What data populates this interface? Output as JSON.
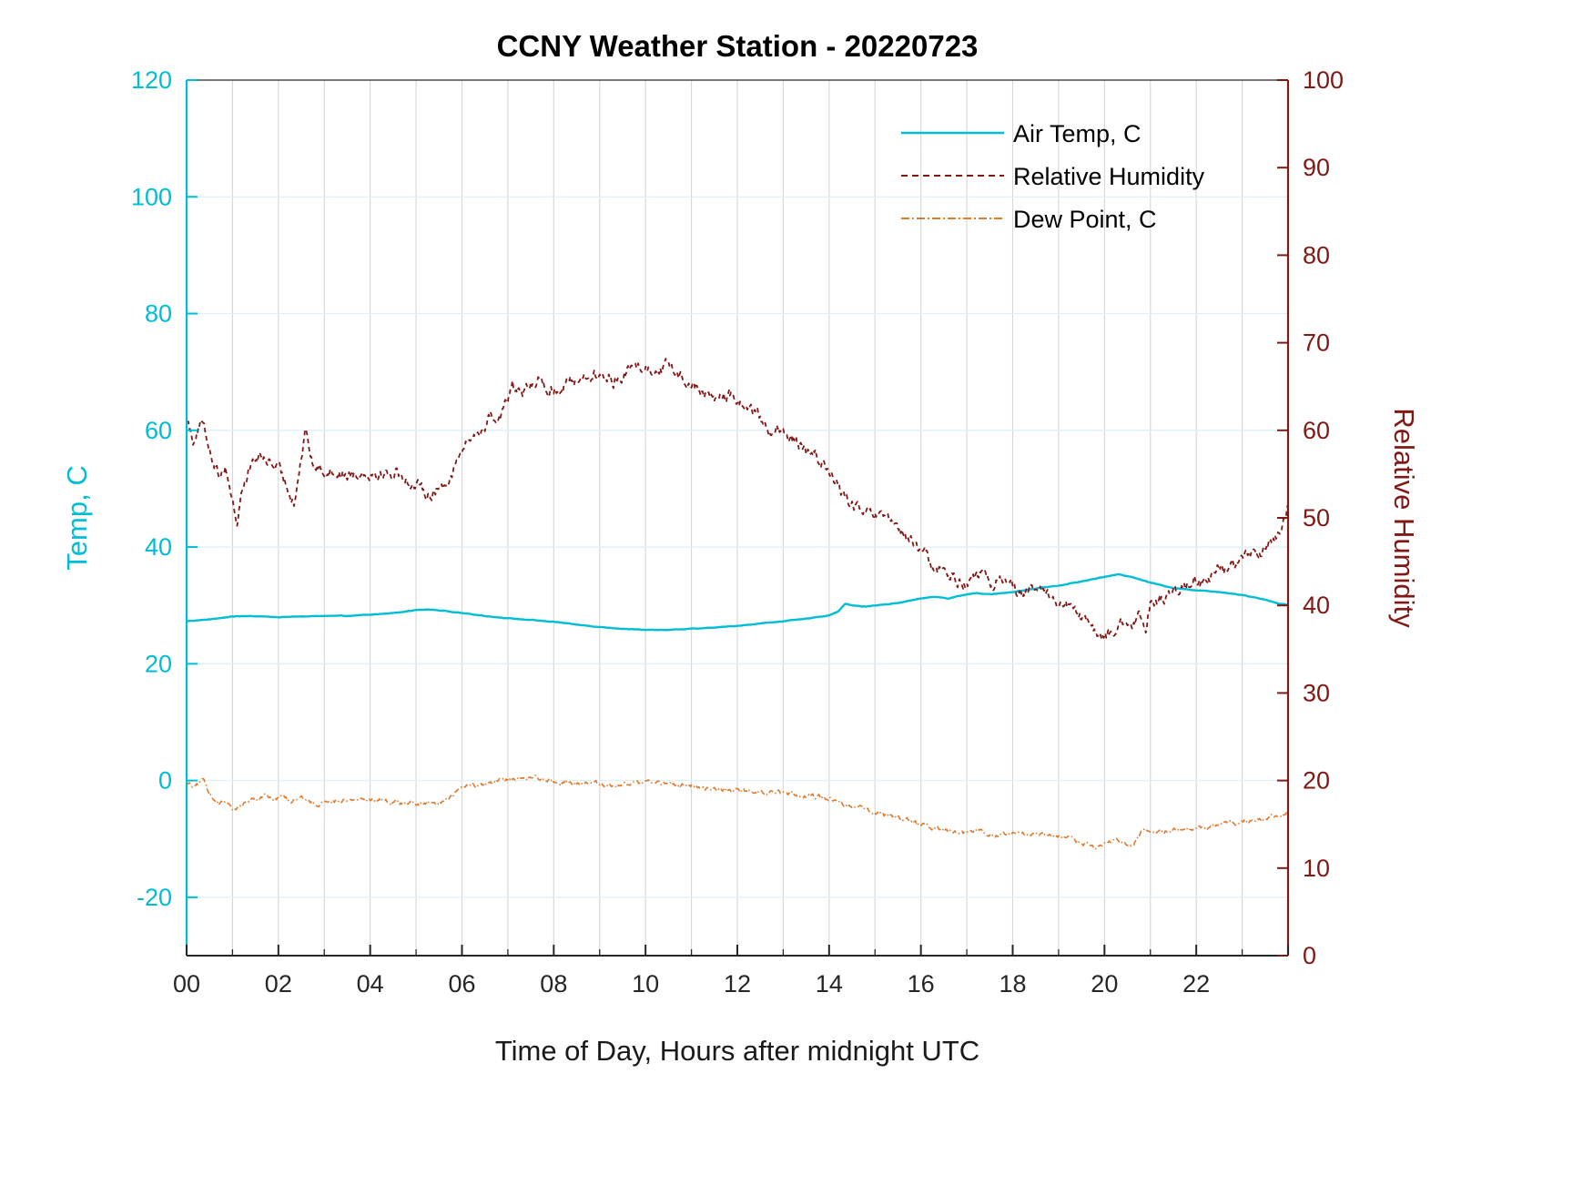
{
  "chart_data": {
    "type": "line",
    "title": "CCNY Weather Station - 20220723",
    "xlabel": "Time of Day, Hours after midnight UTC",
    "ylabel_left": "Temp, C",
    "ylabel_right": "Relative Humidity",
    "xlim": [
      0,
      24
    ],
    "xticks": [
      0,
      2,
      4,
      6,
      8,
      10,
      12,
      14,
      16,
      18,
      20,
      22
    ],
    "xtick_labels": [
      "00",
      "02",
      "04",
      "06",
      "08",
      "10",
      "12",
      "14",
      "16",
      "18",
      "20",
      "22"
    ],
    "x_minor_grid_step": 1,
    "ylim_left": [
      -30,
      120
    ],
    "yticks_left": [
      -20,
      0,
      20,
      40,
      60,
      80,
      100,
      120
    ],
    "ylim_right": [
      0,
      100
    ],
    "yticks_right": [
      0,
      10,
      20,
      30,
      40,
      50,
      60,
      70,
      80,
      90,
      100
    ],
    "grid": true,
    "legend": [
      "Air Temp, C",
      "Relative Humidity",
      "Dew Point, C"
    ],
    "legend_position": "top-right-inside",
    "colors": {
      "temp": "#00bdd6",
      "rh": "#801815",
      "dew": "#df7a2e",
      "grid_h": "#ddf1f6",
      "grid_v": "#d6d6d6",
      "axis_x": "#262626"
    },
    "series": [
      {
        "key": "air-temp",
        "name": "Air Temp, C",
        "axis": "left",
        "color_key": "temp",
        "width": 2.4,
        "dash": "",
        "noise": 0.06,
        "points": [
          [
            0,
            27.3
          ],
          [
            0.5,
            27.6
          ],
          [
            1,
            28.1
          ],
          [
            1.3,
            28.2
          ],
          [
            2,
            28.0
          ],
          [
            2.5,
            28.1
          ],
          [
            3,
            28.2
          ],
          [
            3.5,
            28.2
          ],
          [
            4,
            28.4
          ],
          [
            4.5,
            28.7
          ],
          [
            5,
            29.2
          ],
          [
            5.3,
            29.3
          ],
          [
            5.7,
            29.0
          ],
          [
            6,
            28.7
          ],
          [
            6.5,
            28.2
          ],
          [
            7,
            27.8
          ],
          [
            7.5,
            27.5
          ],
          [
            8,
            27.2
          ],
          [
            8.5,
            26.7
          ],
          [
            9,
            26.3
          ],
          [
            9.5,
            26.0
          ],
          [
            10,
            25.8
          ],
          [
            10.5,
            25.8
          ],
          [
            11,
            26.0
          ],
          [
            11.5,
            26.2
          ],
          [
            12,
            26.5
          ],
          [
            12.5,
            26.9
          ],
          [
            13,
            27.3
          ],
          [
            13.5,
            27.7
          ],
          [
            14,
            28.3
          ],
          [
            14.2,
            29.0
          ],
          [
            14.35,
            30.3
          ],
          [
            14.5,
            30.0
          ],
          [
            14.8,
            29.8
          ],
          [
            15,
            30.0
          ],
          [
            15.5,
            30.4
          ],
          [
            16,
            31.2
          ],
          [
            16.3,
            31.5
          ],
          [
            16.6,
            31.2
          ],
          [
            17,
            31.9
          ],
          [
            17.2,
            32.1
          ],
          [
            17.5,
            31.9
          ],
          [
            18,
            32.3
          ],
          [
            18.5,
            32.9
          ],
          [
            19,
            33.4
          ],
          [
            19.5,
            34.1
          ],
          [
            20,
            34.9
          ],
          [
            20.3,
            35.3
          ],
          [
            20.6,
            34.9
          ],
          [
            21,
            33.9
          ],
          [
            21.5,
            33.0
          ],
          [
            22,
            32.6
          ],
          [
            22.5,
            32.3
          ],
          [
            23,
            31.8
          ],
          [
            23.5,
            31.0
          ],
          [
            23.8,
            30.3
          ],
          [
            24,
            30.1
          ]
        ]
      },
      {
        "key": "relative-humidity",
        "name": "Relative Humidity",
        "axis": "right",
        "color_key": "rh",
        "width": 1.8,
        "dash": "5 4",
        "noise": 1.0,
        "points": [
          [
            0,
            61.5
          ],
          [
            0.15,
            59
          ],
          [
            0.3,
            61
          ],
          [
            0.5,
            58
          ],
          [
            0.7,
            55
          ],
          [
            0.85,
            56
          ],
          [
            1.0,
            52
          ],
          [
            1.1,
            49.5
          ],
          [
            1.2,
            53
          ],
          [
            1.4,
            56
          ],
          [
            1.6,
            57
          ],
          [
            1.8,
            56.5
          ],
          [
            2.0,
            55.5
          ],
          [
            2.2,
            53.5
          ],
          [
            2.35,
            52
          ],
          [
            2.5,
            57
          ],
          [
            2.6,
            60
          ],
          [
            2.75,
            56
          ],
          [
            3.0,
            55.5
          ],
          [
            3.3,
            55.2
          ],
          [
            3.6,
            55
          ],
          [
            4.0,
            55.3
          ],
          [
            4.3,
            55
          ],
          [
            4.6,
            55.2
          ],
          [
            4.9,
            54
          ],
          [
            5.1,
            53.2
          ],
          [
            5.3,
            52.8
          ],
          [
            5.6,
            53.6
          ],
          [
            5.9,
            56.5
          ],
          [
            6.1,
            58.5
          ],
          [
            6.3,
            59.5
          ],
          [
            6.5,
            60.5
          ],
          [
            6.6,
            62
          ],
          [
            6.75,
            61
          ],
          [
            6.9,
            62.5
          ],
          [
            7.0,
            63.5
          ],
          [
            7.1,
            65
          ],
          [
            7.3,
            64
          ],
          [
            7.5,
            65
          ],
          [
            7.7,
            66
          ],
          [
            7.9,
            64.5
          ],
          [
            8.1,
            64.8
          ],
          [
            8.3,
            65.5
          ],
          [
            8.6,
            66
          ],
          [
            8.9,
            66.3
          ],
          [
            9.1,
            66
          ],
          [
            9.3,
            65.6
          ],
          [
            9.5,
            66.5
          ],
          [
            9.7,
            67
          ],
          [
            9.9,
            67.5
          ],
          [
            10.1,
            67
          ],
          [
            10.3,
            67.2
          ],
          [
            10.5,
            67.5
          ],
          [
            10.7,
            66.5
          ],
          [
            10.9,
            65.8
          ],
          [
            11.1,
            64.8
          ],
          [
            11.3,
            64.2
          ],
          [
            11.5,
            63.6
          ],
          [
            11.7,
            64
          ],
          [
            11.9,
            63.8
          ],
          [
            12.1,
            63
          ],
          [
            12.3,
            62.5
          ],
          [
            12.5,
            61.2
          ],
          [
            12.7,
            60.2
          ],
          [
            12.9,
            60
          ],
          [
            13.1,
            58.8
          ],
          [
            13.3,
            58.6
          ],
          [
            13.5,
            57.4
          ],
          [
            13.7,
            57
          ],
          [
            13.9,
            56
          ],
          [
            14.05,
            55
          ],
          [
            14.2,
            53.5
          ],
          [
            14.4,
            52
          ],
          [
            14.6,
            51
          ],
          [
            14.8,
            50.4
          ],
          [
            15.0,
            50.2
          ],
          [
            15.2,
            49.8
          ],
          [
            15.4,
            49
          ],
          [
            15.6,
            48.2
          ],
          [
            15.8,
            47.4
          ],
          [
            16.0,
            46.2
          ],
          [
            16.2,
            45
          ],
          [
            16.35,
            43.8
          ],
          [
            16.5,
            44.2
          ],
          [
            16.7,
            43.2
          ],
          [
            16.9,
            42.6
          ],
          [
            17.1,
            42.9
          ],
          [
            17.3,
            43.4
          ],
          [
            17.5,
            42.4
          ],
          [
            17.7,
            42.8
          ],
          [
            17.9,
            43
          ],
          [
            18.1,
            41.8
          ],
          [
            18.3,
            41.4
          ],
          [
            18.5,
            41.8
          ],
          [
            18.7,
            41.2
          ],
          [
            18.9,
            40.8
          ],
          [
            19.1,
            40.2
          ],
          [
            19.3,
            39.4
          ],
          [
            19.5,
            38.6
          ],
          [
            19.7,
            37.4
          ],
          [
            19.9,
            36.4
          ],
          [
            20.0,
            36.0
          ],
          [
            20.15,
            37
          ],
          [
            20.3,
            37.6
          ],
          [
            20.45,
            38.2
          ],
          [
            20.6,
            37.2
          ],
          [
            20.75,
            38.4
          ],
          [
            20.9,
            37.2
          ],
          [
            21.0,
            40.3
          ],
          [
            21.2,
            40.8
          ],
          [
            21.4,
            41.2
          ],
          [
            21.6,
            41.6
          ],
          [
            21.8,
            42
          ],
          [
            21.95,
            43
          ],
          [
            22.1,
            42.4
          ],
          [
            22.3,
            43
          ],
          [
            22.45,
            44.6
          ],
          [
            22.6,
            44
          ],
          [
            22.8,
            44.8
          ],
          [
            23.0,
            45.4
          ],
          [
            23.2,
            45.8
          ],
          [
            23.4,
            46.2
          ],
          [
            23.6,
            46.8
          ],
          [
            23.8,
            48
          ],
          [
            23.95,
            50
          ],
          [
            24,
            51.2
          ]
        ]
      },
      {
        "key": "dew-point",
        "name": "Dew Point, C",
        "axis": "right",
        "color_key": "dew",
        "width": 1.6,
        "dash": "6 3 1.5 3",
        "noise": 0.38,
        "points": [
          [
            0,
            19.8
          ],
          [
            0.2,
            19.2
          ],
          [
            0.35,
            20
          ],
          [
            0.5,
            18.6
          ],
          [
            0.7,
            17.2
          ],
          [
            0.85,
            17.6
          ],
          [
            1.0,
            16.4
          ],
          [
            1.15,
            17
          ],
          [
            1.3,
            17.6
          ],
          [
            1.5,
            17.9
          ],
          [
            1.7,
            18.3
          ],
          [
            1.9,
            18
          ],
          [
            2.1,
            18.2
          ],
          [
            2.3,
            17.4
          ],
          [
            2.5,
            18.4
          ],
          [
            2.65,
            17.6
          ],
          [
            2.8,
            17.4
          ],
          [
            3.0,
            17.6
          ],
          [
            3.3,
            17.7
          ],
          [
            3.6,
            17.8
          ],
          [
            3.9,
            17.9
          ],
          [
            4.2,
            17.8
          ],
          [
            4.5,
            17.6
          ],
          [
            4.8,
            17.4
          ],
          [
            5.1,
            17.3
          ],
          [
            5.4,
            17.3
          ],
          [
            5.7,
            17.8
          ],
          [
            6.0,
            19.2
          ],
          [
            6.2,
            19.5
          ],
          [
            6.4,
            19.2
          ],
          [
            6.6,
            19.6
          ],
          [
            6.8,
            19.9
          ],
          [
            7.0,
            20.1
          ],
          [
            7.2,
            20.4
          ],
          [
            7.4,
            20.2
          ],
          [
            7.6,
            20.6
          ],
          [
            7.8,
            20.2
          ],
          [
            8.0,
            19.9
          ],
          [
            8.3,
            19.8
          ],
          [
            8.6,
            19.7
          ],
          [
            9.0,
            19.6
          ],
          [
            9.4,
            19.5
          ],
          [
            9.8,
            19.7
          ],
          [
            10.1,
            19.9
          ],
          [
            10.4,
            19.6
          ],
          [
            10.7,
            19.5
          ],
          [
            11.0,
            19.4
          ],
          [
            11.4,
            19.1
          ],
          [
            11.8,
            18.9
          ],
          [
            12.2,
            18.8
          ],
          [
            12.6,
            18.7
          ],
          [
            13.0,
            18.6
          ],
          [
            13.4,
            18.4
          ],
          [
            13.8,
            18.1
          ],
          [
            14.1,
            17.9
          ],
          [
            14.3,
            17.4
          ],
          [
            14.6,
            16.9
          ],
          [
            14.9,
            16.4
          ],
          [
            15.2,
            16.1
          ],
          [
            15.5,
            15.7
          ],
          [
            15.8,
            15.3
          ],
          [
            16.1,
            14.9
          ],
          [
            16.4,
            14.5
          ],
          [
            16.7,
            14.2
          ],
          [
            17.0,
            13.9
          ],
          [
            17.2,
            14.3
          ],
          [
            17.4,
            14.1
          ],
          [
            17.6,
            13.9
          ],
          [
            17.9,
            13.8
          ],
          [
            18.2,
            13.9
          ],
          [
            18.5,
            13.8
          ],
          [
            18.8,
            13.6
          ],
          [
            19.1,
            13.4
          ],
          [
            19.4,
            13.1
          ],
          [
            19.6,
            12.8
          ],
          [
            19.8,
            12.3
          ],
          [
            20.0,
            12.6
          ],
          [
            20.2,
            13.4
          ],
          [
            20.4,
            13.1
          ],
          [
            20.6,
            12.5
          ],
          [
            20.8,
            13.9
          ],
          [
            21.0,
            14.4
          ],
          [
            21.3,
            14.2
          ],
          [
            21.6,
            14.4
          ],
          [
            22.0,
            14.5
          ],
          [
            22.4,
            14.8
          ],
          [
            22.8,
            15.1
          ],
          [
            23.2,
            15.4
          ],
          [
            23.6,
            15.8
          ],
          [
            23.9,
            16.3
          ],
          [
            24,
            16.8
          ]
        ]
      }
    ]
  }
}
